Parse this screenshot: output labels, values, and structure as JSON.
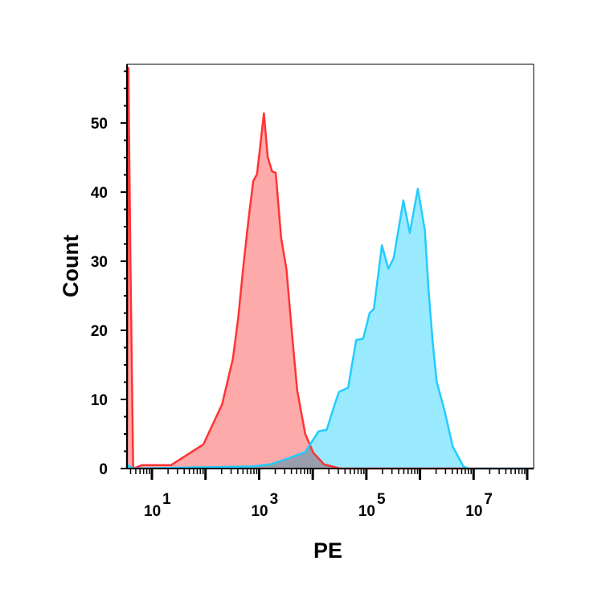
{
  "chart_data": {
    "type": "area",
    "title": "",
    "xlabel": "PE",
    "ylabel": "Count",
    "x_scale": "log",
    "xlim_log10": [
      0.535,
      8.12
    ],
    "ylim": [
      0,
      58.5
    ],
    "y_ticks": [
      "0",
      "10",
      "20",
      "30",
      "40",
      "50"
    ],
    "x_ticks": [
      {
        "base": "10",
        "exp": "1"
      },
      {
        "base": "10",
        "exp": "3"
      },
      {
        "base": "10",
        "exp": "5"
      },
      {
        "base": "10",
        "exp": "7"
      }
    ],
    "grid": false,
    "legend": "none",
    "series": [
      {
        "color": "#ff3333",
        "fill": "#ffaaaa",
        "log10_x": [
          0.535,
          0.56,
          0.6,
          0.65,
          0.82,
          1.36,
          1.72,
          1.96,
          2.31,
          2.51,
          2.61,
          2.71,
          2.81,
          2.89,
          2.96,
          3.09,
          3.16,
          3.24,
          3.31,
          3.41,
          3.51,
          3.61,
          3.71,
          3.86,
          4.01,
          4.21,
          4.51,
          8.12
        ],
        "values": [
          0,
          58,
          30,
          0,
          0.5,
          0.5,
          2.3,
          3.5,
          9.3,
          15.9,
          21.8,
          29.6,
          36.6,
          41.6,
          42.6,
          51.4,
          45.1,
          43,
          42.8,
          33.4,
          28.8,
          19.8,
          11.3,
          5,
          2.3,
          0.6,
          0,
          0
        ]
      },
      {
        "color": "#22ccff",
        "fill": "#99eaff",
        "log10_x": [
          0.535,
          0.55,
          0.65,
          2.86,
          3.21,
          3.51,
          3.86,
          4.01,
          4.11,
          4.26,
          4.41,
          4.49,
          4.66,
          4.81,
          4.94,
          5.06,
          5.14,
          5.29,
          5.41,
          5.51,
          5.69,
          5.81,
          5.96,
          6.09,
          6.16,
          6.24,
          6.31,
          6.46,
          6.61,
          6.81,
          6.9,
          8.12
        ],
        "values": [
          0,
          0.5,
          0,
          0.3,
          0.6,
          1.4,
          2.4,
          4.2,
          5.4,
          5.6,
          9.3,
          11.1,
          11.7,
          18.6,
          18.8,
          22.5,
          23.1,
          32.3,
          28.9,
          30.5,
          38.8,
          34.1,
          40.5,
          34.5,
          25.9,
          18,
          12.6,
          8.3,
          3.2,
          0.3,
          0,
          0
        ]
      }
    ]
  }
}
